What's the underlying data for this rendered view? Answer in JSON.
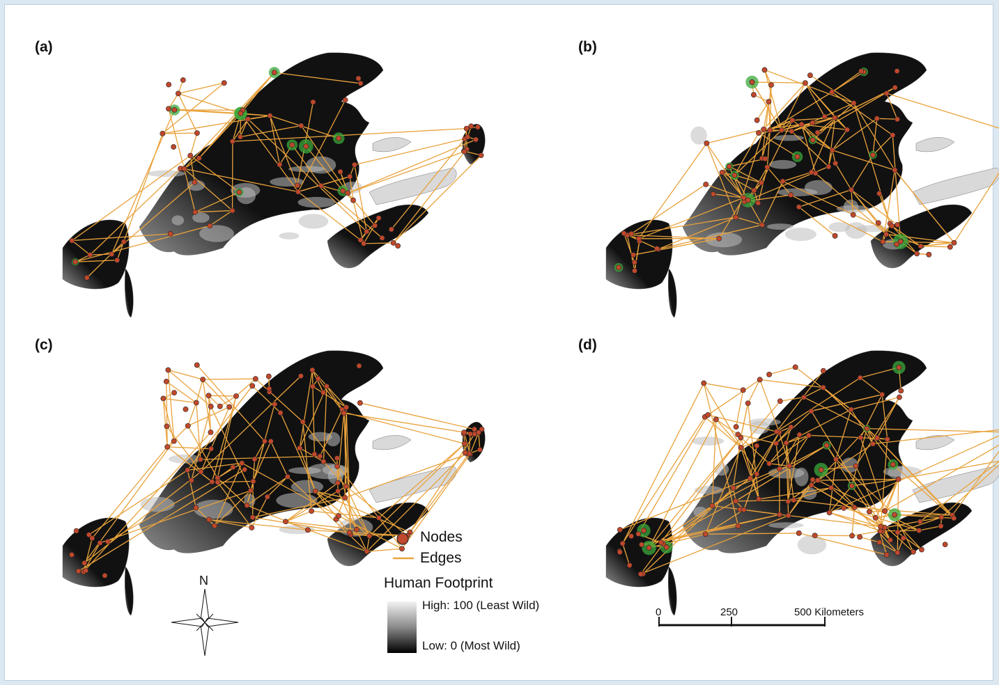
{
  "panels": [
    {
      "label": "(a)"
    },
    {
      "label": "(b)"
    },
    {
      "label": "(c)"
    },
    {
      "label": "(d)"
    }
  ],
  "legend": {
    "nodes_label": "Nodes",
    "edges_label": "Edges",
    "footprint_title": "Human Footprint",
    "high_label": "High: 100 (Least Wild)",
    "low_label": "Low: 0 (Most Wild)"
  },
  "north_arrow": {
    "label": "N"
  },
  "scale_bar": {
    "tick_0": "0",
    "tick_1": "250",
    "tick_2": "500 Kilometers"
  },
  "colors": {
    "node_fill": "#c0482c",
    "edge": "#e9a23b",
    "land_dark": "#111111",
    "land_light": "#d9d9d9",
    "core_green": "#3ba83b",
    "page_background": "#dce8f1"
  }
}
